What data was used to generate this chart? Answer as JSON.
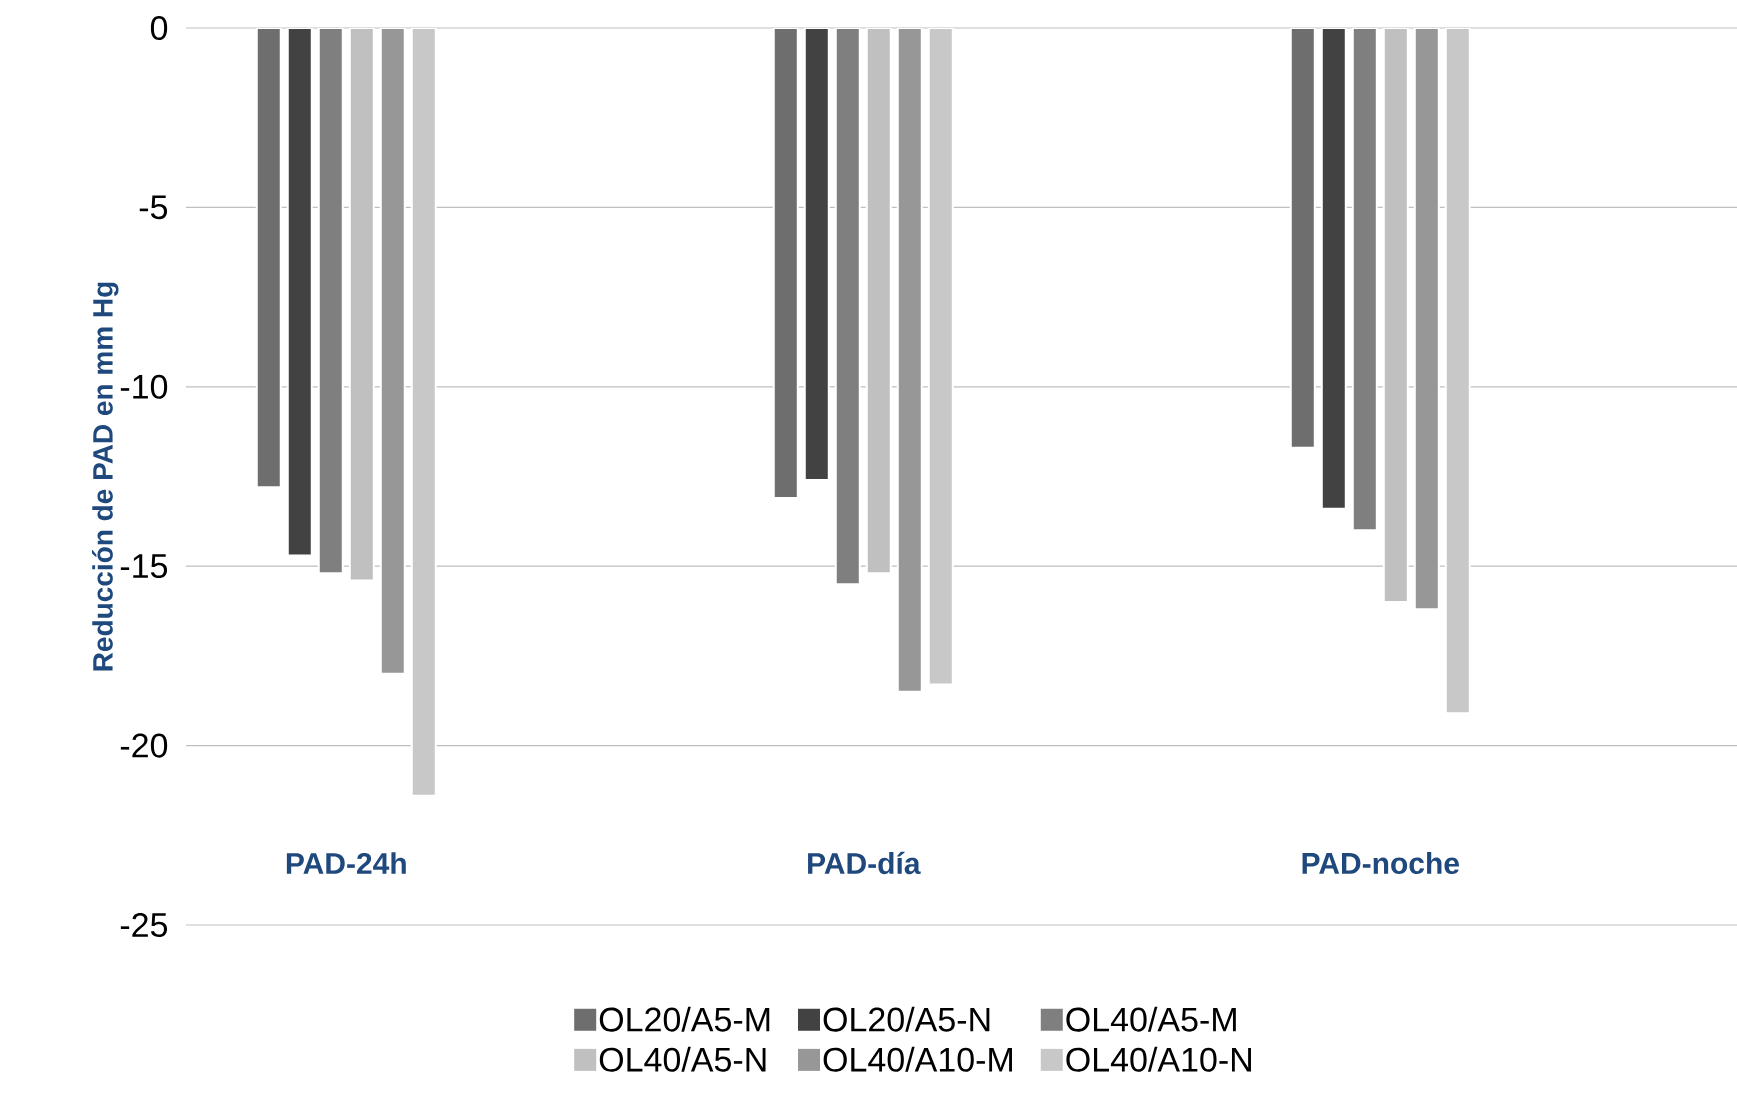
{
  "chart_data": {
    "type": "bar",
    "ylabel": "Reducción de PAD en mm Hg",
    "categories": [
      "PAD-24h",
      "PAD-día",
      "PAD-noche"
    ],
    "series": [
      {
        "name": "OL20/A5-M",
        "color": "#6e6e6e",
        "values": [
          -12.8,
          -13.1,
          -11.7
        ]
      },
      {
        "name": "OL20/A5-N",
        "color": "#424242",
        "values": [
          -14.7,
          -12.6,
          -13.4
        ]
      },
      {
        "name": "OL40/A5-M",
        "color": "#7f7f7f",
        "values": [
          -15.2,
          -15.5,
          -14.0
        ]
      },
      {
        "name": "OL40/A5-N",
        "color": "#c0c0c0",
        "values": [
          -15.4,
          -15.2,
          -16.0
        ]
      },
      {
        "name": "OL40/A10-M",
        "color": "#979797",
        "values": [
          -18.0,
          -18.5,
          -16.2
        ]
      },
      {
        "name": "OL40/A10-N",
        "color": "#c8c8c8",
        "values": [
          -21.4,
          -18.3,
          -19.1
        ]
      }
    ],
    "ylim": [
      -25,
      0
    ],
    "yticks": [
      0,
      -5,
      -10,
      -15,
      -20,
      -25
    ],
    "grid": "y",
    "legend": "bottom"
  }
}
